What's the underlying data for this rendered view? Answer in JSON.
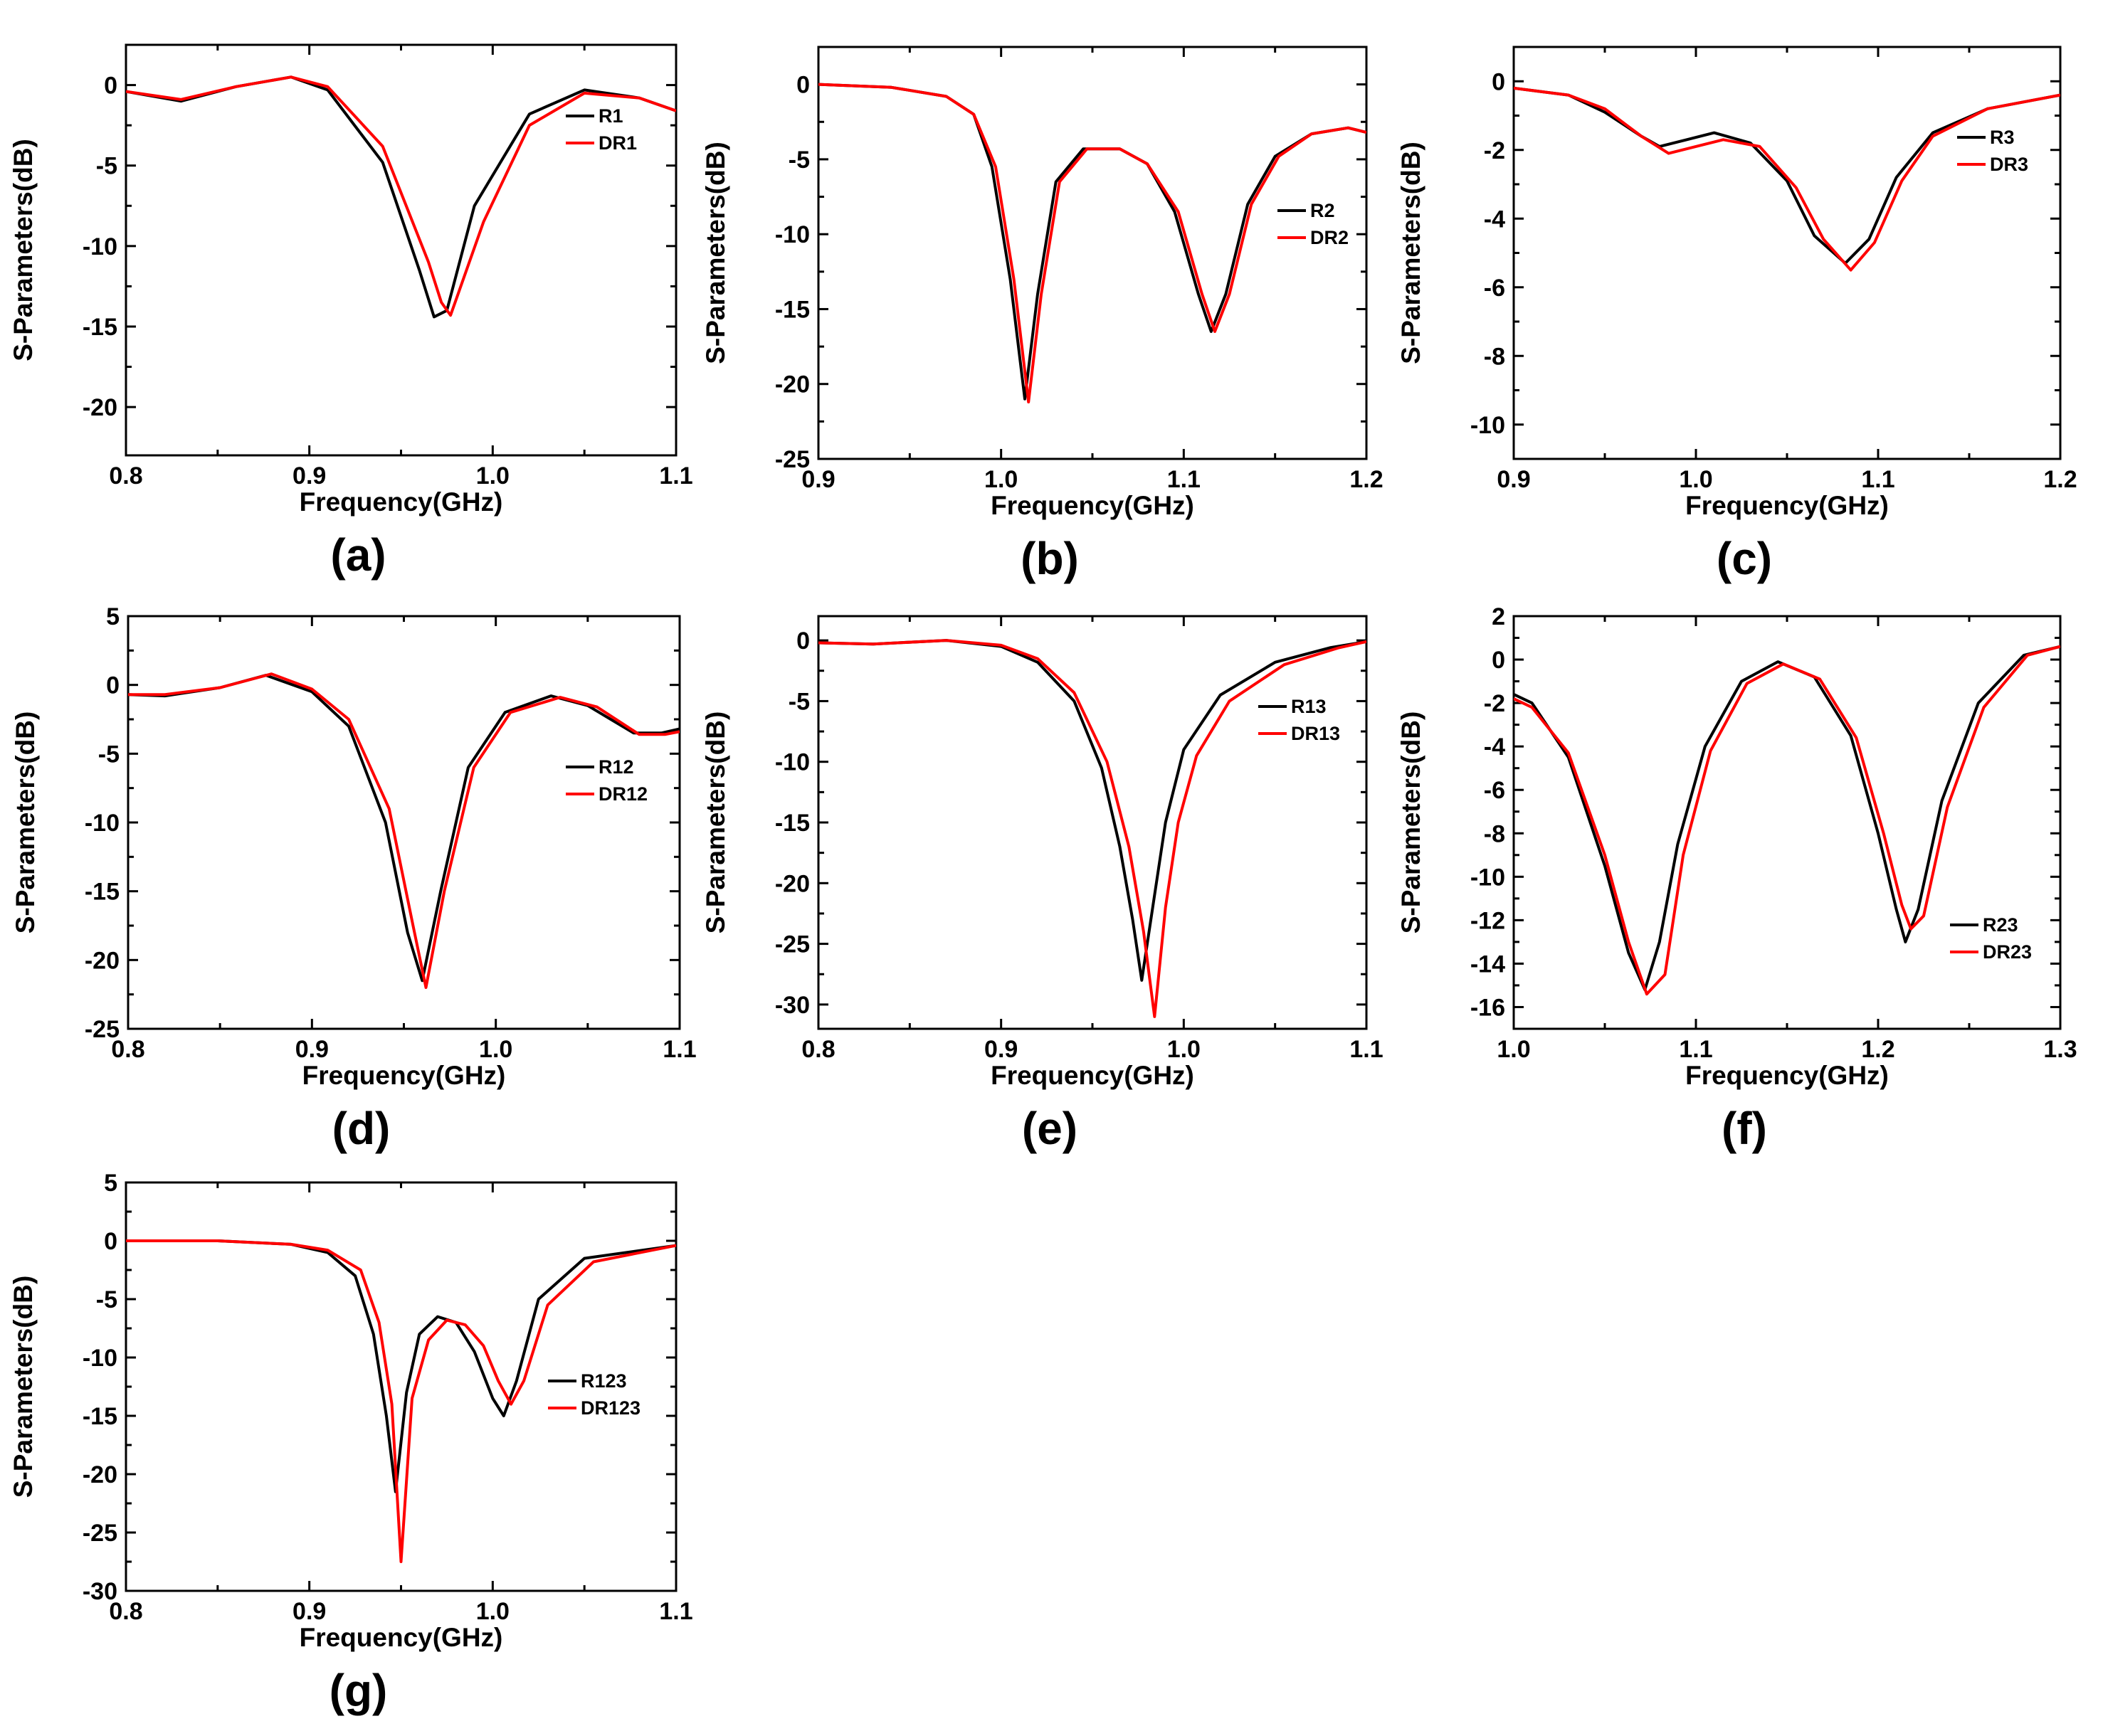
{
  "figure": {
    "colors": {
      "series_1": "#000000",
      "series_2": "#ff0000",
      "axis": "#000000"
    }
  },
  "chart_data": [
    {
      "panel_label": "(a)",
      "type": "line",
      "xlabel": "Frequency(GHz)",
      "ylabel": "S-Parameters(dB)",
      "xlim": [
        0.8,
        1.1
      ],
      "ylim": [
        -23,
        2.5
      ],
      "xticks": [
        0.8,
        0.9,
        1.0,
        1.1
      ],
      "xtick_labels": [
        "0.8",
        "0.9",
        "1.0",
        "1.1"
      ],
      "yticks": [
        -20,
        -15,
        -10,
        -5,
        0
      ],
      "ytick_labels": [
        "-20",
        "-15",
        "-10",
        "-5",
        "0"
      ],
      "legend_position": "top-right",
      "series": [
        {
          "name": "R1",
          "color": "#000000",
          "x": [
            0.8,
            0.83,
            0.86,
            0.89,
            0.91,
            0.94,
            0.96,
            0.968,
            0.975,
            0.99,
            1.02,
            1.05,
            1.08,
            1.1
          ],
          "y": [
            -0.4,
            -1.0,
            -0.1,
            0.5,
            -0.3,
            -4.8,
            -11.5,
            -14.4,
            -14.0,
            -7.5,
            -1.8,
            -0.3,
            -0.8,
            -1.6
          ]
        },
        {
          "name": "DR1",
          "color": "#ff0000",
          "x": [
            0.8,
            0.83,
            0.86,
            0.89,
            0.91,
            0.94,
            0.965,
            0.972,
            0.977,
            0.995,
            1.02,
            1.05,
            1.08,
            1.1
          ],
          "y": [
            -0.4,
            -0.9,
            -0.1,
            0.5,
            -0.1,
            -3.8,
            -11.0,
            -13.5,
            -14.3,
            -8.5,
            -2.5,
            -0.5,
            -0.8,
            -1.6
          ]
        }
      ]
    },
    {
      "panel_label": "(b)",
      "type": "line",
      "xlabel": "Frequency(GHz)",
      "ylabel": "S-Parameters(dB)",
      "xlim": [
        0.9,
        1.2
      ],
      "ylim": [
        -25,
        2.5
      ],
      "xticks": [
        0.9,
        1.0,
        1.1,
        1.2
      ],
      "xtick_labels": [
        "0.9",
        "1.0",
        "1.1",
        "1.2"
      ],
      "yticks": [
        -25,
        -20,
        -15,
        -10,
        -5,
        0
      ],
      "ytick_labels": [
        "-25",
        "-20",
        "-15",
        "-10",
        "-5",
        "0"
      ],
      "legend_position": "center-right",
      "series": [
        {
          "name": "R2",
          "color": "#000000",
          "x": [
            0.9,
            0.94,
            0.97,
            0.985,
            0.995,
            1.005,
            1.013,
            1.02,
            1.03,
            1.045,
            1.065,
            1.08,
            1.095,
            1.108,
            1.115,
            1.123,
            1.135,
            1.15,
            1.17,
            1.19,
            1.2
          ],
          "y": [
            0,
            -0.2,
            -0.8,
            -2.0,
            -5.5,
            -13.0,
            -21.0,
            -14.0,
            -6.5,
            -4.3,
            -4.3,
            -5.3,
            -8.5,
            -14.0,
            -16.5,
            -14.0,
            -8.0,
            -4.8,
            -3.3,
            -2.9,
            -3.2
          ]
        },
        {
          "name": "DR2",
          "color": "#ff0000",
          "x": [
            0.9,
            0.94,
            0.97,
            0.985,
            0.997,
            1.007,
            1.015,
            1.022,
            1.032,
            1.047,
            1.065,
            1.08,
            1.097,
            1.11,
            1.117,
            1.125,
            1.137,
            1.152,
            1.17,
            1.19,
            1.2
          ],
          "y": [
            0,
            -0.2,
            -0.8,
            -2.0,
            -5.5,
            -13.0,
            -21.2,
            -14.0,
            -6.5,
            -4.3,
            -4.3,
            -5.3,
            -8.5,
            -14.0,
            -16.5,
            -14.0,
            -8.0,
            -4.8,
            -3.3,
            -2.9,
            -3.2
          ]
        }
      ]
    },
    {
      "panel_label": "(c)",
      "type": "line",
      "xlabel": "Frequency(GHz)",
      "ylabel": "S-Parameters(dB)",
      "xlim": [
        0.9,
        1.2
      ],
      "ylim": [
        -11,
        1
      ],
      "xticks": [
        0.9,
        1.0,
        1.1,
        1.2
      ],
      "xtick_labels": [
        "0.9",
        "1.0",
        "1.1",
        "1.2"
      ],
      "yticks": [
        -10,
        -8,
        -6,
        -4,
        -2,
        0
      ],
      "ytick_labels": [
        "-10",
        "-8",
        "-6",
        "-4",
        "-2",
        "0"
      ],
      "legend_position": "top-right",
      "series": [
        {
          "name": "R3",
          "color": "#000000",
          "x": [
            0.9,
            0.93,
            0.95,
            0.97,
            0.98,
            0.995,
            1.01,
            1.03,
            1.05,
            1.065,
            1.082,
            1.095,
            1.11,
            1.13,
            1.16,
            1.2
          ],
          "y": [
            -0.2,
            -0.4,
            -0.9,
            -1.6,
            -1.9,
            -1.7,
            -1.5,
            -1.8,
            -2.9,
            -4.5,
            -5.3,
            -4.6,
            -2.8,
            -1.5,
            -0.8,
            -0.4
          ]
        },
        {
          "name": "DR3",
          "color": "#ff0000",
          "x": [
            0.9,
            0.93,
            0.95,
            0.97,
            0.985,
            1.0,
            1.015,
            1.035,
            1.055,
            1.07,
            1.085,
            1.098,
            1.113,
            1.13,
            1.16,
            1.2
          ],
          "y": [
            -0.2,
            -0.4,
            -0.8,
            -1.6,
            -2.1,
            -1.9,
            -1.7,
            -1.9,
            -3.1,
            -4.6,
            -5.5,
            -4.7,
            -2.9,
            -1.6,
            -0.8,
            -0.4
          ]
        }
      ]
    },
    {
      "panel_label": "(d)",
      "type": "line",
      "xlabel": "Frequency(GHz)",
      "ylabel": "S-Parameters(dB)",
      "xlim": [
        0.8,
        1.1
      ],
      "ylim": [
        -25,
        5
      ],
      "xticks": [
        0.8,
        0.9,
        1.0,
        1.1
      ],
      "xtick_labels": [
        "0.8",
        "0.9",
        "1.0",
        "1.1"
      ],
      "yticks": [
        -25,
        -20,
        -15,
        -10,
        -5,
        0,
        5
      ],
      "ytick_labels": [
        "-25",
        "-20",
        "-15",
        "-10",
        "-5",
        "0",
        "5"
      ],
      "legend_position": "center-right",
      "series": [
        {
          "name": "R12",
          "color": "#000000",
          "x": [
            0.8,
            0.82,
            0.85,
            0.875,
            0.9,
            0.92,
            0.94,
            0.952,
            0.96,
            0.97,
            0.985,
            1.005,
            1.03,
            1.05,
            1.075,
            1.09,
            1.1
          ],
          "y": [
            -0.7,
            -0.8,
            -0.2,
            0.7,
            -0.5,
            -3.0,
            -10.0,
            -18.0,
            -21.5,
            -15.0,
            -6.0,
            -2.0,
            -0.8,
            -1.5,
            -3.5,
            -3.5,
            -3.2
          ]
        },
        {
          "name": "DR12",
          "color": "#ff0000",
          "x": [
            0.8,
            0.82,
            0.85,
            0.878,
            0.9,
            0.92,
            0.942,
            0.955,
            0.962,
            0.972,
            0.988,
            1.008,
            1.035,
            1.055,
            1.078,
            1.092,
            1.1
          ],
          "y": [
            -0.7,
            -0.7,
            -0.2,
            0.8,
            -0.3,
            -2.5,
            -9.0,
            -17.5,
            -22.0,
            -15.0,
            -6.0,
            -2.0,
            -0.9,
            -1.6,
            -3.6,
            -3.6,
            -3.4
          ]
        }
      ]
    },
    {
      "panel_label": "(e)",
      "type": "line",
      "xlabel": "Frequency(GHz)",
      "ylabel": "S-Parameters(dB)",
      "xlim": [
        0.8,
        1.1
      ],
      "ylim": [
        -32,
        2
      ],
      "xticks": [
        0.8,
        0.9,
        1.0,
        1.1
      ],
      "xtick_labels": [
        "0.8",
        "0.9",
        "1.0",
        "1.1"
      ],
      "yticks": [
        -30,
        -25,
        -20,
        -15,
        -10,
        -5,
        0
      ],
      "ytick_labels": [
        "-30",
        "-25",
        "-20",
        "-15",
        "-10",
        "-5",
        "0"
      ],
      "legend_position": "top-right",
      "series": [
        {
          "name": "R13",
          "color": "#000000",
          "x": [
            0.8,
            0.83,
            0.87,
            0.9,
            0.92,
            0.94,
            0.955,
            0.965,
            0.972,
            0.977,
            0.983,
            0.99,
            1.0,
            1.02,
            1.05,
            1.08,
            1.1
          ],
          "y": [
            -0.2,
            -0.3,
            0,
            -0.5,
            -1.8,
            -5.0,
            -10.5,
            -17.0,
            -23.0,
            -28.0,
            -22.0,
            -15.0,
            -9.0,
            -4.5,
            -1.8,
            -0.6,
            -0.1
          ]
        },
        {
          "name": "DR13",
          "color": "#ff0000",
          "x": [
            0.8,
            0.83,
            0.87,
            0.9,
            0.92,
            0.94,
            0.958,
            0.97,
            0.978,
            0.984,
            0.99,
            0.997,
            1.007,
            1.025,
            1.055,
            1.085,
            1.1
          ],
          "y": [
            -0.2,
            -0.3,
            0,
            -0.4,
            -1.5,
            -4.3,
            -10.0,
            -17.0,
            -24.0,
            -31.0,
            -22.0,
            -15.0,
            -9.5,
            -5.0,
            -2.0,
            -0.6,
            -0.1
          ]
        }
      ]
    },
    {
      "panel_label": "(f)",
      "type": "line",
      "xlabel": "Frequency(GHz)",
      "ylabel": "S-Parameters(dB)",
      "xlim": [
        1.0,
        1.3
      ],
      "ylim": [
        -17,
        2
      ],
      "xticks": [
        1.0,
        1.1,
        1.2,
        1.3
      ],
      "xtick_labels": [
        "1.0",
        "1.1",
        "1.2",
        "1.3"
      ],
      "yticks": [
        -16,
        -14,
        -12,
        -10,
        -8,
        -6,
        -4,
        -2,
        0,
        2
      ],
      "ytick_labels": [
        "-16",
        "-14",
        "-12",
        "-10",
        "-8",
        "-6",
        "-4",
        "-2",
        "0",
        "2"
      ],
      "legend_position": "bottom-right",
      "series": [
        {
          "name": "R23",
          "color": "#000000",
          "x": [
            1.0,
            1.01,
            1.03,
            1.05,
            1.063,
            1.072,
            1.08,
            1.09,
            1.105,
            1.125,
            1.145,
            1.165,
            1.185,
            1.2,
            1.21,
            1.215,
            1.222,
            1.235,
            1.255,
            1.28,
            1.3
          ],
          "y": [
            -1.6,
            -2.0,
            -4.5,
            -9.5,
            -13.5,
            -15.2,
            -13.0,
            -8.5,
            -4.0,
            -1.0,
            -0.1,
            -0.8,
            -3.5,
            -8.0,
            -11.5,
            -13.0,
            -11.5,
            -6.5,
            -2.0,
            0.2,
            0.6
          ]
        },
        {
          "name": "DR23",
          "color": "#ff0000",
          "x": [
            1.0,
            1.01,
            1.03,
            1.05,
            1.063,
            1.073,
            1.083,
            1.093,
            1.108,
            1.128,
            1.148,
            1.168,
            1.188,
            1.203,
            1.213,
            1.218,
            1.225,
            1.238,
            1.258,
            1.282,
            1.3
          ],
          "y": [
            -1.8,
            -2.2,
            -4.3,
            -9.0,
            -13.0,
            -15.4,
            -14.5,
            -9.0,
            -4.2,
            -1.1,
            -0.2,
            -0.9,
            -3.6,
            -8.0,
            -11.3,
            -12.4,
            -11.8,
            -6.8,
            -2.2,
            0.2,
            0.6
          ]
        }
      ]
    },
    {
      "panel_label": "(g)",
      "type": "line",
      "xlabel": "Frequency(GHz)",
      "ylabel": "S-Parameters(dB)",
      "xlim": [
        0.8,
        1.1
      ],
      "ylim": [
        -30,
        5
      ],
      "xticks": [
        0.8,
        0.9,
        1.0,
        1.1
      ],
      "xtick_labels": [
        "0.8",
        "0.9",
        "1.0",
        "1.1"
      ],
      "yticks": [
        -30,
        -25,
        -20,
        -15,
        -10,
        -5,
        0,
        5
      ],
      "ytick_labels": [
        "-30",
        "-25",
        "-20",
        "-15",
        "-10",
        "-5",
        "0",
        "5"
      ],
      "legend_position": "center-right",
      "series": [
        {
          "name": "R123",
          "color": "#000000",
          "x": [
            0.8,
            0.85,
            0.89,
            0.91,
            0.925,
            0.935,
            0.942,
            0.947,
            0.953,
            0.96,
            0.97,
            0.98,
            0.99,
            1.0,
            1.006,
            1.013,
            1.025,
            1.05,
            1.1
          ],
          "y": [
            0,
            0,
            -0.3,
            -1.0,
            -3.0,
            -8.0,
            -15.0,
            -21.5,
            -13.0,
            -8.0,
            -6.5,
            -7.0,
            -9.5,
            -13.5,
            -15.0,
            -12.0,
            -5.0,
            -1.5,
            -0.4
          ]
        },
        {
          "name": "DR123",
          "color": "#ff0000",
          "x": [
            0.8,
            0.85,
            0.89,
            0.91,
            0.928,
            0.938,
            0.945,
            0.95,
            0.956,
            0.965,
            0.975,
            0.985,
            0.995,
            1.003,
            1.01,
            1.017,
            1.03,
            1.055,
            1.1
          ],
          "y": [
            0,
            0,
            -0.3,
            -0.8,
            -2.5,
            -7.0,
            -14.0,
            -27.5,
            -13.5,
            -8.5,
            -6.8,
            -7.2,
            -9.0,
            -12.0,
            -14.0,
            -12.0,
            -5.5,
            -1.8,
            -0.4
          ]
        }
      ]
    }
  ]
}
